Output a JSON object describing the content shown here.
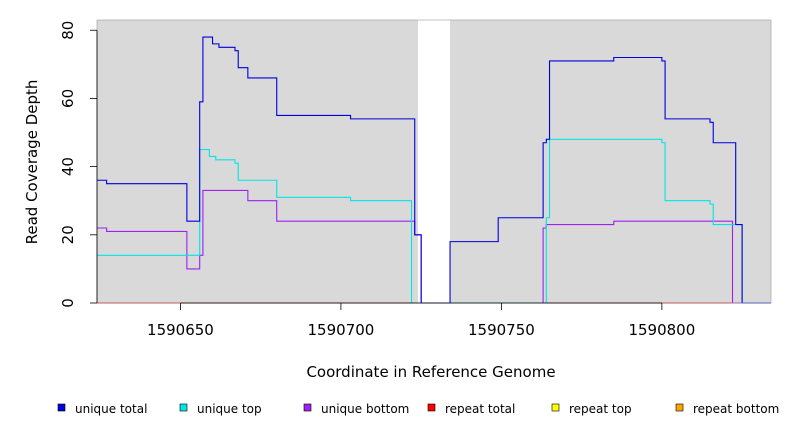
{
  "chart_data": {
    "type": "line",
    "title": "",
    "xlabel": "Coordinate in Reference Genome",
    "ylabel": "Read Coverage Depth",
    "xlim": [
      1590624,
      1590834
    ],
    "ylim": [
      0,
      83
    ],
    "xticks": [
      1590650,
      1590700,
      1590750,
      1590800
    ],
    "yticks": [
      0,
      20,
      40,
      60,
      80
    ],
    "grid": false,
    "legend": "bottom",
    "plot_background": "#d9d9d9",
    "gap_regions": [
      [
        1590724,
        1590734
      ]
    ],
    "series": [
      {
        "name": "unique total",
        "color": "#0000dd",
        "points": [
          [
            1590624,
            36
          ],
          [
            1590627,
            36
          ],
          [
            1590627,
            35
          ],
          [
            1590652,
            35
          ],
          [
            1590652,
            24
          ],
          [
            1590656,
            24
          ],
          [
            1590656,
            59
          ],
          [
            1590657,
            59
          ],
          [
            1590657,
            78
          ],
          [
            1590660,
            78
          ],
          [
            1590660,
            76
          ],
          [
            1590662,
            76
          ],
          [
            1590662,
            75
          ],
          [
            1590667,
            75
          ],
          [
            1590667,
            74
          ],
          [
            1590668,
            74
          ],
          [
            1590668,
            69
          ],
          [
            1590671,
            69
          ],
          [
            1590671,
            66
          ],
          [
            1590680,
            66
          ],
          [
            1590680,
            55
          ],
          [
            1590703,
            55
          ],
          [
            1590703,
            54
          ],
          [
            1590723,
            54
          ],
          [
            1590723,
            20
          ],
          [
            1590725,
            20
          ],
          [
            1590725,
            0
          ],
          [
            1590734,
            0
          ],
          [
            1590734,
            18
          ],
          [
            1590749,
            18
          ],
          [
            1590749,
            25
          ],
          [
            1590763,
            25
          ],
          [
            1590763,
            47
          ],
          [
            1590764,
            47
          ],
          [
            1590764,
            48
          ],
          [
            1590765,
            48
          ],
          [
            1590765,
            71
          ],
          [
            1590785,
            71
          ],
          [
            1590785,
            72
          ],
          [
            1590800,
            72
          ],
          [
            1590800,
            71
          ],
          [
            1590801,
            71
          ],
          [
            1590801,
            54
          ],
          [
            1590815,
            54
          ],
          [
            1590815,
            53
          ],
          [
            1590816,
            53
          ],
          [
            1590816,
            47
          ],
          [
            1590823,
            47
          ],
          [
            1590823,
            23
          ],
          [
            1590825,
            23
          ],
          [
            1590825,
            0
          ],
          [
            1590834,
            0
          ]
        ]
      },
      {
        "name": "unique top",
        "color": "#00e5e5",
        "points": [
          [
            1590624,
            14
          ],
          [
            1590656,
            14
          ],
          [
            1590656,
            45
          ],
          [
            1590659,
            45
          ],
          [
            1590659,
            43
          ],
          [
            1590661,
            43
          ],
          [
            1590661,
            42
          ],
          [
            1590667,
            42
          ],
          [
            1590667,
            41
          ],
          [
            1590668,
            41
          ],
          [
            1590668,
            36
          ],
          [
            1590680,
            36
          ],
          [
            1590680,
            31
          ],
          [
            1590703,
            31
          ],
          [
            1590703,
            30
          ],
          [
            1590722,
            30
          ],
          [
            1590722,
            0
          ],
          [
            1590734,
            0
          ],
          [
            1590734,
            0
          ],
          [
            1590764,
            0
          ],
          [
            1590764,
            25
          ],
          [
            1590765,
            25
          ],
          [
            1590765,
            48
          ],
          [
            1590800,
            48
          ],
          [
            1590800,
            47
          ],
          [
            1590801,
            47
          ],
          [
            1590801,
            30
          ],
          [
            1590815,
            30
          ],
          [
            1590815,
            29
          ],
          [
            1590816,
            29
          ],
          [
            1590816,
            23
          ],
          [
            1590825,
            23
          ],
          [
            1590825,
            0
          ],
          [
            1590834,
            0
          ]
        ]
      },
      {
        "name": "unique bottom",
        "color": "#a020f0",
        "points": [
          [
            1590624,
            22
          ],
          [
            1590627,
            22
          ],
          [
            1590627,
            21
          ],
          [
            1590652,
            21
          ],
          [
            1590652,
            10
          ],
          [
            1590656,
            10
          ],
          [
            1590656,
            14
          ],
          [
            1590657,
            14
          ],
          [
            1590657,
            33
          ],
          [
            1590671,
            33
          ],
          [
            1590671,
            30
          ],
          [
            1590680,
            30
          ],
          [
            1590680,
            24
          ],
          [
            1590723,
            24
          ],
          [
            1590723,
            20
          ],
          [
            1590725,
            20
          ],
          [
            1590725,
            0
          ],
          [
            1590763,
            0
          ],
          [
            1590763,
            22
          ],
          [
            1590764,
            22
          ],
          [
            1590764,
            23
          ],
          [
            1590785,
            23
          ],
          [
            1590785,
            24
          ],
          [
            1590822,
            24
          ],
          [
            1590822,
            0
          ],
          [
            1590834,
            0
          ]
        ]
      },
      {
        "name": "repeat total",
        "color": "#ff0000",
        "points": [
          [
            1590624,
            0
          ],
          [
            1590834,
            0
          ]
        ]
      },
      {
        "name": "repeat top",
        "color": "#ffff00",
        "points": [
          [
            1590624,
            0
          ],
          [
            1590834,
            0
          ]
        ]
      },
      {
        "name": "repeat bottom",
        "color": "#ffa500",
        "points": [
          [
            1590624,
            0
          ],
          [
            1590834,
            0
          ]
        ]
      }
    ]
  }
}
